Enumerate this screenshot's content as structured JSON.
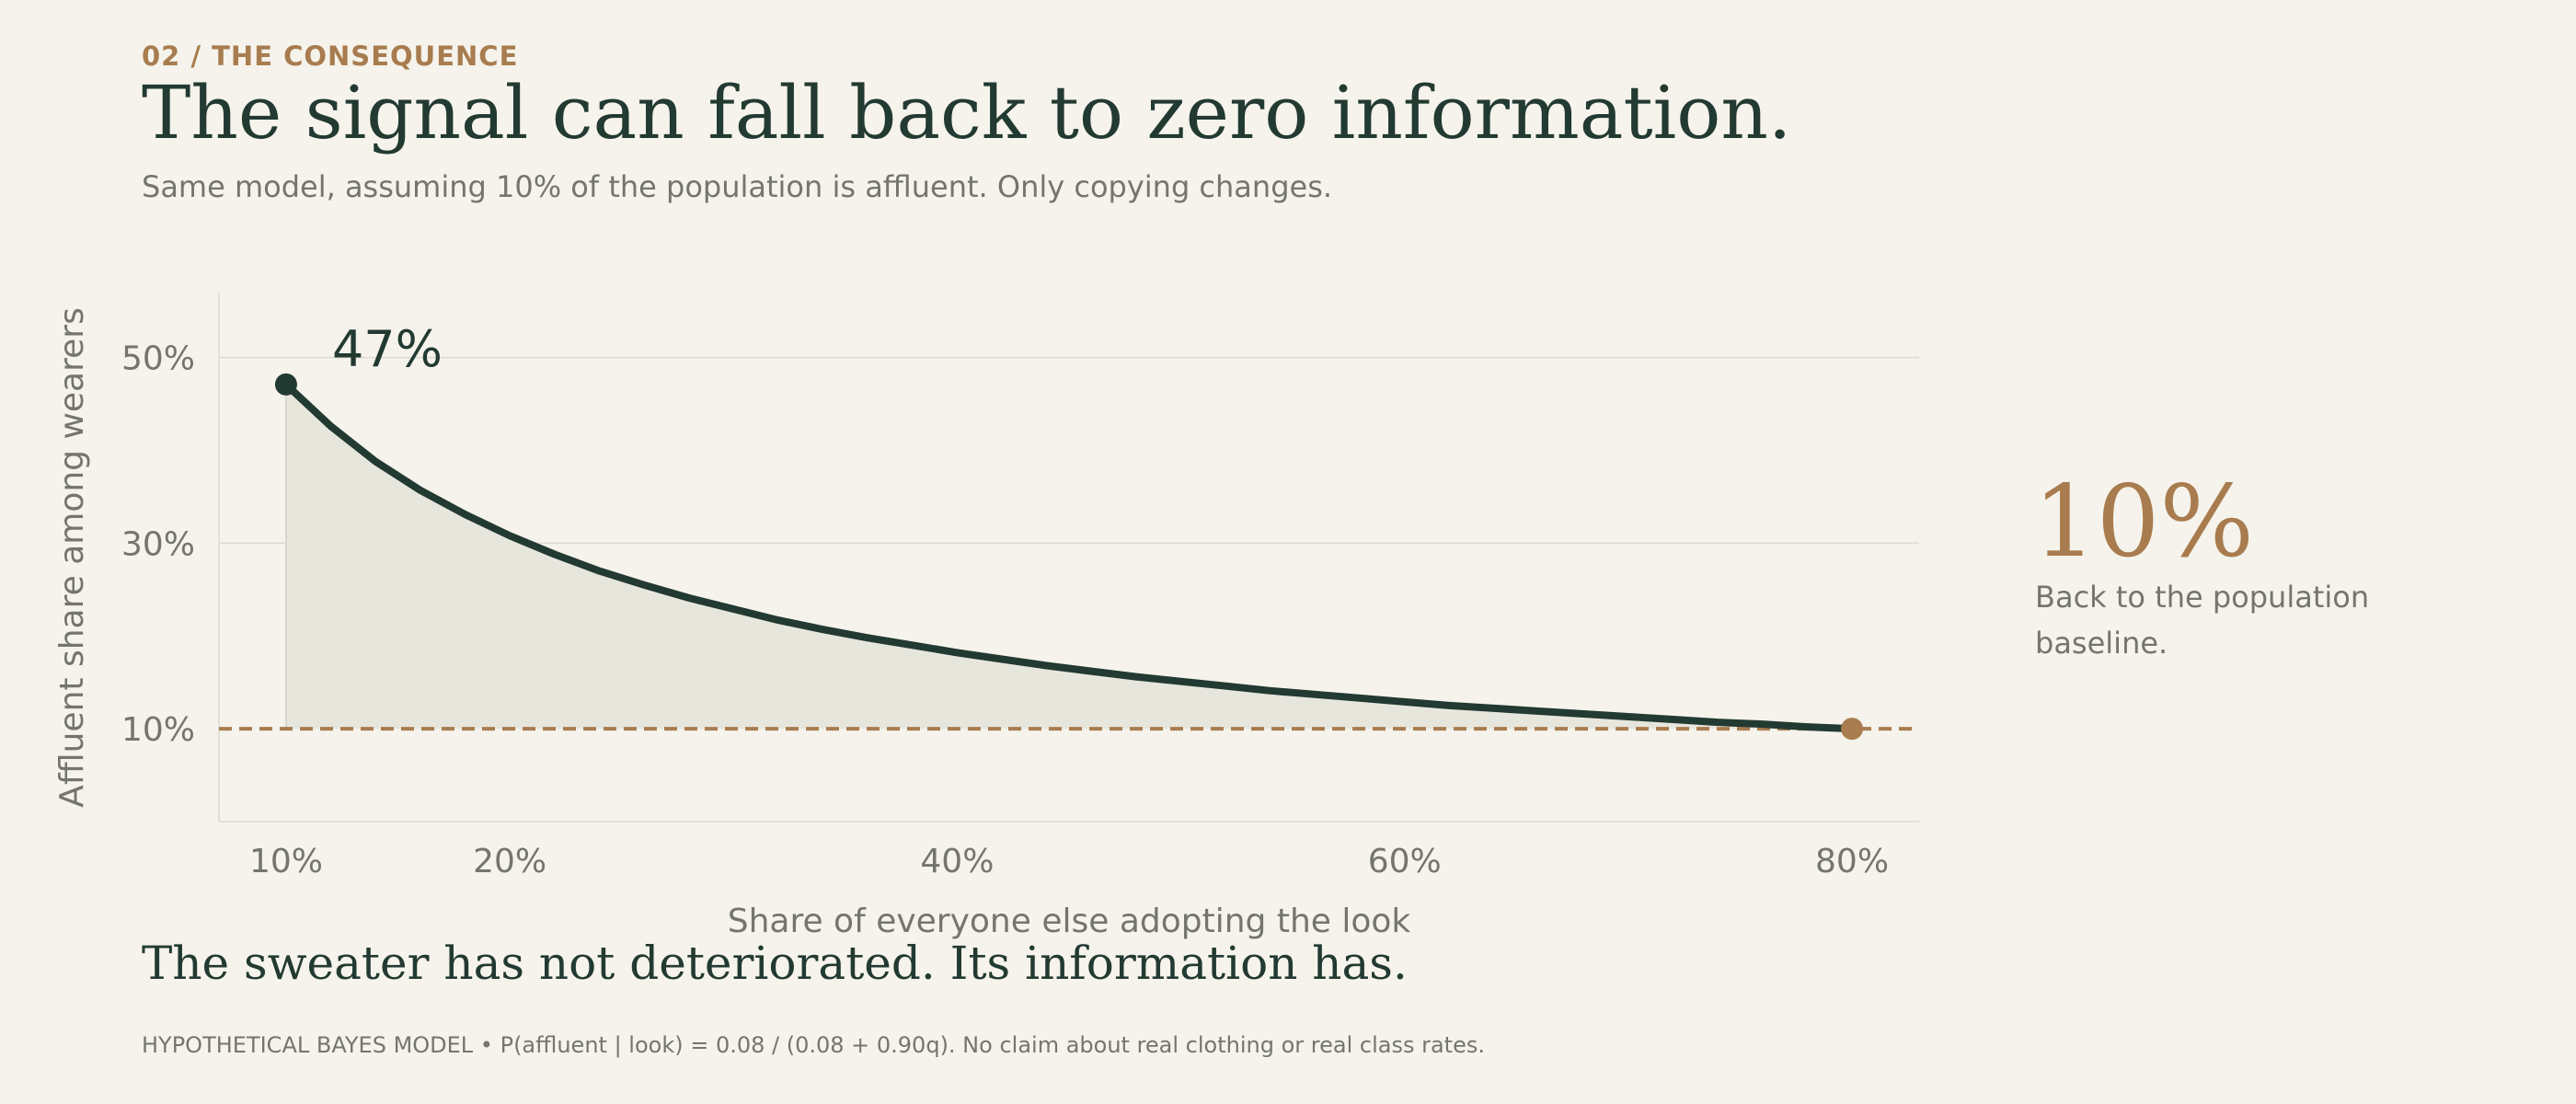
{
  "eyebrow": "02 / THE CONSEQUENCE",
  "title": "The signal can fall back to zero information.",
  "subtitle": "Same model, assuming 10% of the population is affluent. Only copying changes.",
  "callout": {
    "value": "10%",
    "text": "Back to the population baseline."
  },
  "conclusion": "The sweater has not deteriorated. Its information has.",
  "footnote": "HYPOTHETICAL BAYES MODEL • P(affluent | look) = 0.08 / (0.08 + 0.90q). No claim about real clothing or real class rates.",
  "colors": {
    "curve": "#223a31",
    "baseline": "#a87c4f",
    "area": "#e7e6dd",
    "grid": "#dcdad2",
    "text_muted": "#74756f"
  },
  "chart_data": {
    "type": "area",
    "xlabel": "Share of everyone else adopting the look",
    "ylabel": "Affluent share among wearers",
    "x_ticks": [
      10,
      20,
      40,
      60,
      80
    ],
    "x_tick_labels": [
      "10%",
      "20%",
      "40%",
      "60%",
      "80%"
    ],
    "y_ticks": [
      10,
      30,
      50
    ],
    "y_tick_labels": [
      "10%",
      "30%",
      "50%"
    ],
    "xlim": [
      7,
      83
    ],
    "ylim": [
      0,
      57
    ],
    "grid": "horizontal",
    "baseline": {
      "y": 10
    },
    "start_label": "47%",
    "series": [
      {
        "x": [
          10,
          12,
          14,
          16,
          18,
          20,
          22,
          24,
          26,
          28,
          30,
          32,
          34,
          36,
          38,
          40,
          42,
          44,
          46,
          48,
          50,
          52,
          54,
          56,
          58,
          60,
          62,
          64,
          66,
          68,
          70,
          72,
          74,
          76,
          78,
          80
        ],
        "y": [
          47.1,
          42.6,
          38.8,
          35.7,
          33.1,
          30.8,
          28.8,
          27.0,
          25.5,
          24.1,
          22.9,
          21.7,
          20.7,
          19.8,
          19.0,
          18.2,
          17.5,
          16.8,
          16.2,
          15.6,
          15.1,
          14.6,
          14.1,
          13.7,
          13.3,
          12.9,
          12.5,
          12.2,
          11.9,
          11.6,
          11.3,
          11.0,
          10.7,
          10.5,
          10.2,
          10.0
        ]
      }
    ]
  }
}
